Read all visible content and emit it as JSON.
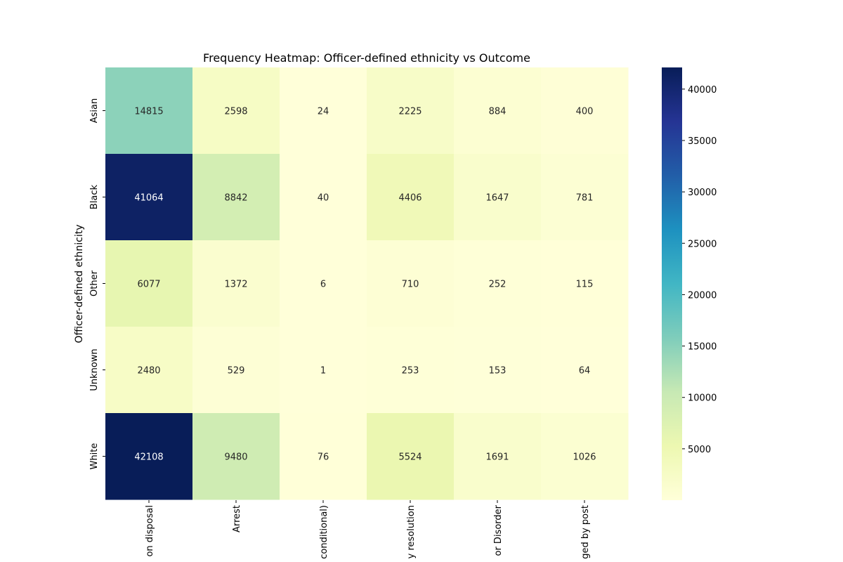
{
  "chart_data": {
    "type": "heatmap",
    "title": "Frequency Heatmap: Officer-defined ethnicity vs Outcome",
    "ylabel": "Officer-defined ethnicity",
    "xlabel": "",
    "rows": [
      "Asian",
      "Black",
      "Other",
      "Unknown",
      "White"
    ],
    "columns": [
      "on disposal",
      "Arrest",
      "conditional)",
      "y resolution",
      "or Disorder",
      "ged by post"
    ],
    "values": [
      [
        14815,
        2598,
        24,
        2225,
        884,
        400
      ],
      [
        41064,
        8842,
        40,
        4406,
        1647,
        781
      ],
      [
        6077,
        1372,
        6,
        710,
        252,
        115
      ],
      [
        2480,
        529,
        1,
        253,
        153,
        64
      ],
      [
        42108,
        9480,
        76,
        5524,
        1691,
        1026
      ]
    ],
    "colormap": "YlGnBu",
    "vmin": 1,
    "vmax": 42108,
    "colorbar_ticks": [
      5000,
      10000,
      15000,
      20000,
      25000,
      30000,
      35000,
      40000
    ],
    "annotations_shown": true
  }
}
